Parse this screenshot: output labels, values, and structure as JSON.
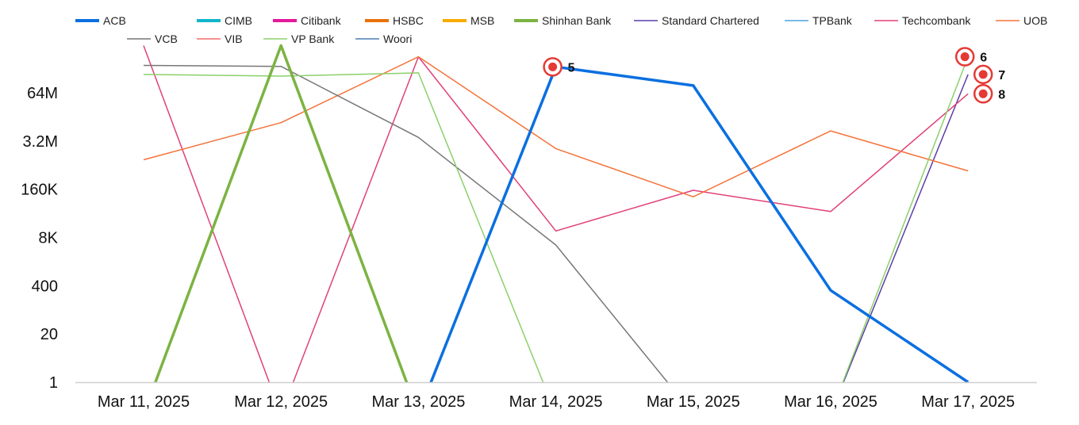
{
  "chart_data": {
    "type": "line",
    "title": "",
    "xlabel": "",
    "ylabel": "",
    "y_scale": "log",
    "grid": false,
    "legend_position": "top-left",
    "categories": [
      "Mar 11, 2025",
      "Mar 12, 2025",
      "Mar 13, 2025",
      "Mar 14, 2025",
      "Mar 15, 2025",
      "Mar 16, 2025",
      "Mar 17, 2025"
    ],
    "y_ticks": [
      {
        "value": 1,
        "label": "1"
      },
      {
        "value": 20,
        "label": "20"
      },
      {
        "value": 400,
        "label": "400"
      },
      {
        "value": 8000,
        "label": "8K"
      },
      {
        "value": 160000,
        "label": "160K"
      },
      {
        "value": 3200000,
        "label": "3.2M"
      },
      {
        "value": 64000000,
        "label": "64M"
      }
    ],
    "ylim": [
      1,
      3000000000
    ],
    "series": [
      {
        "name": "ACB",
        "color": "#0b6fe0",
        "width": 3.5,
        "values": [
          0,
          0,
          0,
          320000000,
          100000000,
          300,
          1
        ]
      },
      {
        "name": "CIMB",
        "color": "#12b5cb",
        "width": 3,
        "values": [
          null,
          null,
          null,
          null,
          null,
          null,
          null
        ]
      },
      {
        "name": "Citibank",
        "color": "#e6179c",
        "width": 3,
        "values": [
          null,
          null,
          null,
          null,
          null,
          null,
          null
        ]
      },
      {
        "name": "HSBC",
        "color": "#e8710a",
        "width": 3,
        "values": [
          null,
          null,
          null,
          null,
          null,
          null,
          null
        ]
      },
      {
        "name": "MSB",
        "color": "#f9ab00",
        "width": 3,
        "values": [
          null,
          null,
          null,
          null,
          null,
          null,
          null
        ]
      },
      {
        "name": "Shinhan Bank",
        "color": "#7cb342",
        "width": 3.5,
        "values": [
          0,
          1200000000,
          0,
          null,
          null,
          null,
          null
        ]
      },
      {
        "name": "Standard Chartered",
        "color": "#5c3da8",
        "width": 1.5,
        "values": [
          null,
          null,
          null,
          null,
          null,
          0,
          200000000
        ]
      },
      {
        "name": "TPBank",
        "color": "#4aa3df",
        "width": 1.5,
        "values": [
          null,
          null,
          null,
          null,
          null,
          null,
          null
        ]
      },
      {
        "name": "Techcombank",
        "color": "#e0407a",
        "width": 1.5,
        "values": [
          1200000000,
          0,
          600000000,
          12000,
          150000,
          40000,
          60000000
        ]
      },
      {
        "name": "UOB",
        "color": "#f4733a",
        "width": 1.5,
        "values": [
          1000000,
          10000000,
          600000000,
          2000000,
          100000,
          6000000,
          500000
        ]
      },
      {
        "name": "VCB",
        "color": "#777777",
        "width": 1.5,
        "values": [
          350000000,
          330000000,
          4000000,
          5000,
          0,
          null,
          null
        ]
      },
      {
        "name": "VIB",
        "color": "#f26b6b",
        "width": 1.5,
        "values": [
          null,
          null,
          null,
          null,
          null,
          null,
          null
        ]
      },
      {
        "name": "VP Bank",
        "color": "#8bd06a",
        "width": 1.5,
        "values": [
          200000000,
          180000000,
          220000000,
          0,
          null,
          0,
          600000000
        ]
      },
      {
        "name": "Woori",
        "color": "#4a7fb5",
        "width": 1.5,
        "values": [
          null,
          null,
          null,
          null,
          null,
          null,
          null
        ]
      }
    ],
    "annotations": [
      {
        "label": "5",
        "x_index": 3,
        "value": 320000000,
        "side": "left"
      },
      {
        "label": "6",
        "x_index": 6,
        "value": 600000000,
        "side": "left"
      },
      {
        "label": "7",
        "x_index": 6,
        "value": 200000000,
        "side": "right"
      },
      {
        "label": "8",
        "x_index": 6,
        "value": 60000000,
        "side": "right"
      }
    ]
  }
}
